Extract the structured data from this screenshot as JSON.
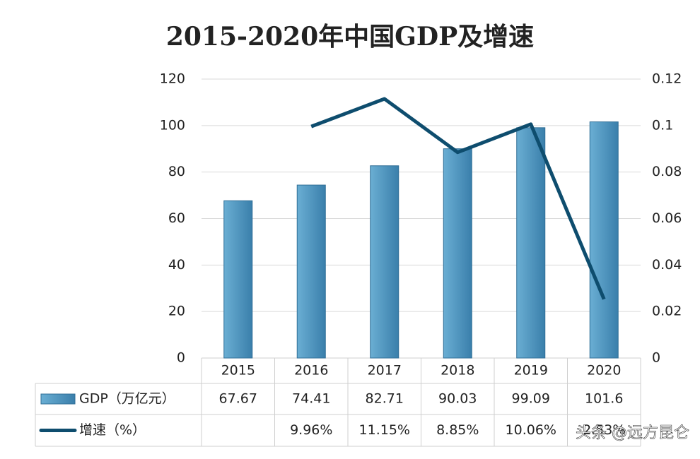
{
  "chart_data": {
    "type": "bar-line",
    "title": "2015-2020年中国GDP及增速",
    "categories": [
      "2015",
      "2016",
      "2017",
      "2018",
      "2019",
      "2020"
    ],
    "series": [
      {
        "name": "GDP（万亿元）",
        "type": "bar",
        "color": "#4f93c0",
        "values": [
          67.67,
          74.41,
          82.71,
          90.03,
          99.09,
          101.6
        ]
      },
      {
        "name": "增速（%）",
        "type": "line",
        "axis": "y2",
        "color": "#0e4d6e",
        "values": [
          null,
          0.0996,
          0.1115,
          0.0885,
          0.1006,
          0.0253
        ],
        "value_labels": [
          null,
          "9.96%",
          "11.15%",
          "8.85%",
          "10.06%",
          "2.53%"
        ]
      }
    ],
    "ylim": [
      0,
      120
    ],
    "yticks": [
      0,
      20,
      40,
      60,
      80,
      100,
      120
    ],
    "y2lim": [
      0,
      0.12
    ],
    "y2ticks": [
      0,
      0.02,
      0.04,
      0.06,
      0.08,
      0.1,
      0.12
    ],
    "grid": true,
    "annotation": "头条 @远方昆仑"
  }
}
